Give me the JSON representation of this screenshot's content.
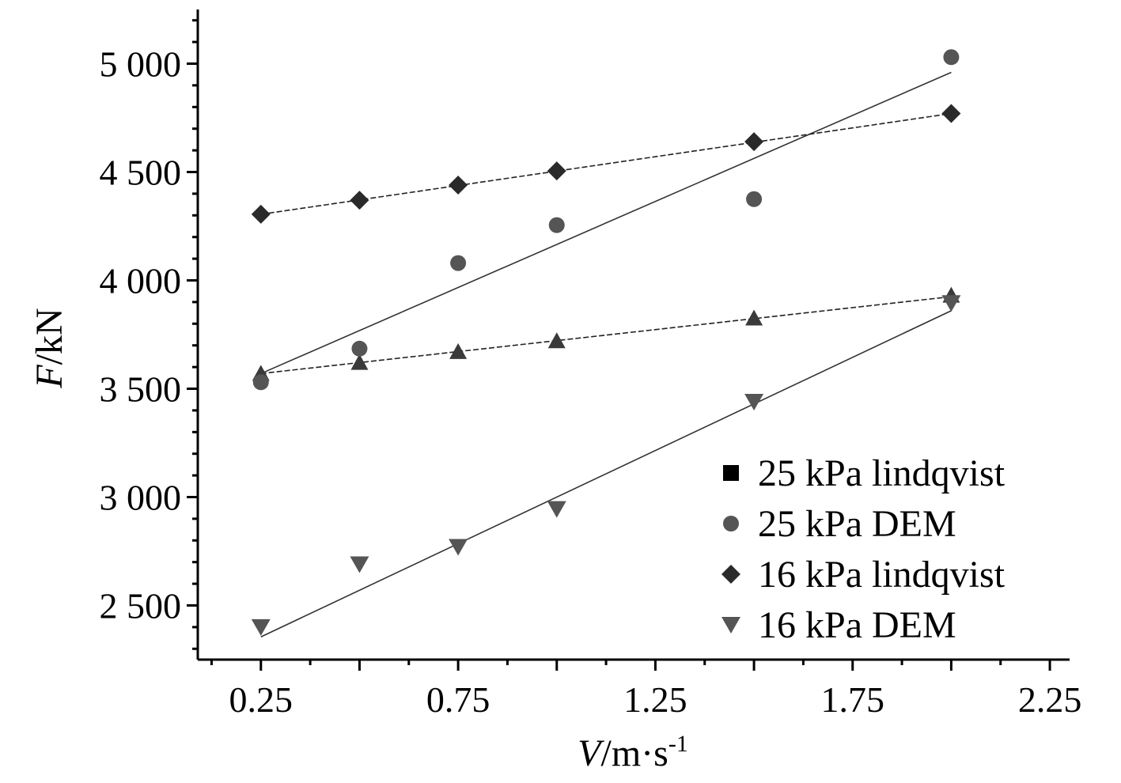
{
  "chart_data": {
    "type": "scatter",
    "title": "",
    "xlabel": {
      "var": "V",
      "unit": "/m·s",
      "sup": "-1"
    },
    "ylabel": {
      "var": "F",
      "unit": "/kN"
    },
    "xlim": [
      0.09,
      2.3
    ],
    "ylim": [
      2250,
      5250
    ],
    "x_ticks": [
      {
        "value": 0.25,
        "label": "0.25"
      },
      {
        "value": 0.75,
        "label": "0.75"
      },
      {
        "value": 1.25,
        "label": "1.25"
      },
      {
        "value": 1.75,
        "label": "1.75"
      },
      {
        "value": 2.25,
        "label": "2.25"
      }
    ],
    "y_ticks": [
      {
        "value": 2500,
        "label": "2 500"
      },
      {
        "value": 3000,
        "label": "3 000"
      },
      {
        "value": 3500,
        "label": "3 500"
      },
      {
        "value": 4000,
        "label": "4 000"
      },
      {
        "value": 4500,
        "label": "4 500"
      },
      {
        "value": 5000,
        "label": "5 000"
      }
    ],
    "x": [
      0.25,
      0.5,
      0.75,
      1.0,
      1.5,
      2.0
    ],
    "series": [
      {
        "name": "25 kPa lindqvist",
        "marker": "triangle",
        "legend_marker": "square",
        "color": "#3a3a3a",
        "values": [
          3570,
          3620,
          3670,
          3720,
          3825,
          3930
        ],
        "fit": {
          "style": "dashed",
          "from": [
            0.25,
            3570
          ],
          "to": [
            2.0,
            3925
          ]
        }
      },
      {
        "name": "25 kPa DEM",
        "marker": "circle",
        "legend_marker": "circle",
        "color": "#555555",
        "values": [
          3530,
          3685,
          4080,
          4255,
          4375,
          5030
        ],
        "fit": {
          "style": "solid",
          "from": [
            0.25,
            3570
          ],
          "to": [
            2.0,
            4960
          ]
        }
      },
      {
        "name": "16 kPa lindqvist",
        "marker": "diamond",
        "legend_marker": "diamond",
        "color": "#2a2a2a",
        "values": [
          4305,
          4370,
          4440,
          4505,
          4640,
          4770
        ],
        "fit": {
          "style": "dashed",
          "from": [
            0.25,
            4305
          ],
          "to": [
            2.0,
            4770
          ]
        }
      },
      {
        "name": "16 kPa DEM",
        "marker": "triangle-down",
        "legend_marker": "triangle-down",
        "color": "#555555",
        "values": [
          2400,
          2690,
          2770,
          2945,
          3440,
          3895
        ],
        "fit": {
          "style": "solid",
          "from": [
            0.25,
            2355
          ],
          "to": [
            2.0,
            3860
          ]
        }
      }
    ],
    "legend": {
      "position": "bottom-right"
    },
    "grid": false
  }
}
